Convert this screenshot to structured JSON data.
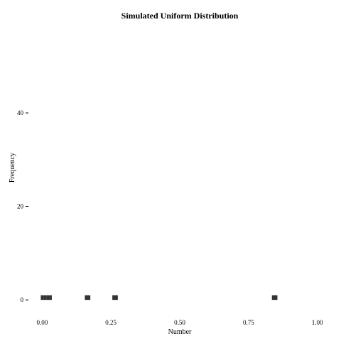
{
  "chart_data": {
    "type": "bar",
    "title": "Simulated Uniform Distribution",
    "xlabel": "Number",
    "ylabel": "Frequency",
    "xlim": [
      -0.05,
      1.05
    ],
    "ylim": [
      -1.5,
      59
    ],
    "x_ticks": [
      "0.00",
      "0.25",
      "0.50",
      "0.75",
      "1.00"
    ],
    "x_tick_values": [
      0,
      0.25,
      0.5,
      0.75,
      1.0
    ],
    "y_ticks": [
      "0",
      "20",
      "40"
    ],
    "y_tick_values": [
      0,
      20,
      40
    ],
    "grid": false,
    "bar_color": "#333333",
    "bins": [
      {
        "x0": -0.005,
        "x1": 0.005,
        "value": 1
      },
      {
        "x0": 0.005,
        "x1": 0.015,
        "value": 1
      },
      {
        "x0": 0.015,
        "x1": 0.025,
        "value": 1
      },
      {
        "x0": 0.025,
        "x1": 0.035,
        "value": 1
      },
      {
        "x0": 0.155,
        "x1": 0.175,
        "value": 1
      },
      {
        "x0": 0.255,
        "x1": 0.275,
        "value": 1
      },
      {
        "x0": 0.835,
        "x1": 0.855,
        "value": 1
      }
    ]
  }
}
